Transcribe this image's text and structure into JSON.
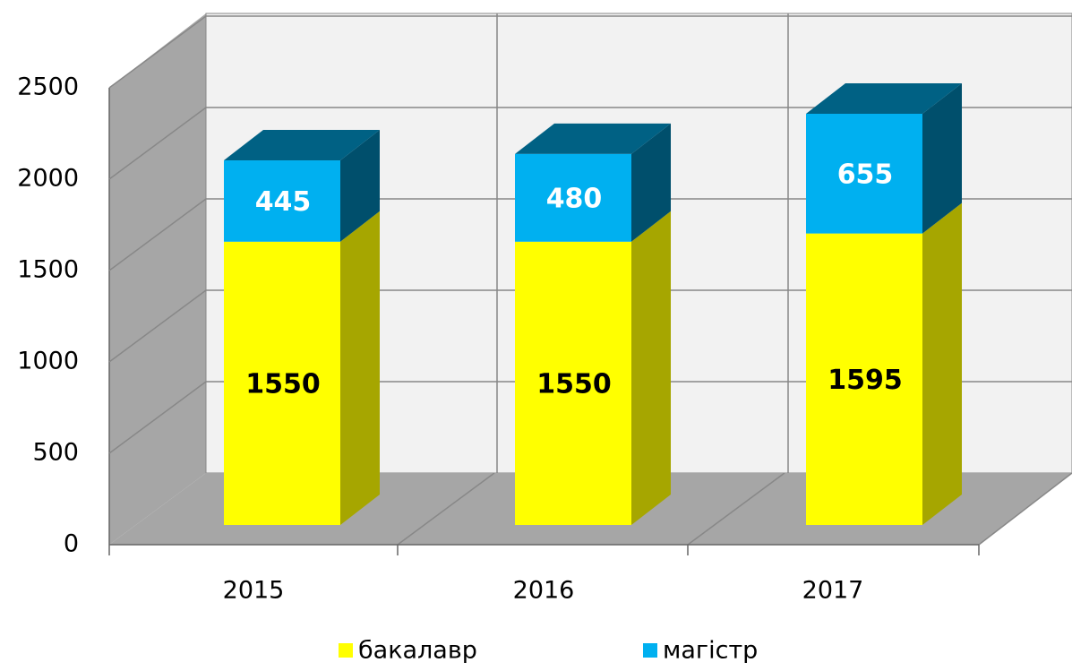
{
  "chart_data": {
    "type": "bar3d_stacked",
    "categories": [
      "2015",
      "2016",
      "2017"
    ],
    "series": [
      {
        "name": "бакалавр",
        "color": "#ffff00",
        "values": [
          1550,
          1550,
          1595
        ]
      },
      {
        "name": "магістр",
        "color": "#00b0f0",
        "values": [
          445,
          480,
          655
        ]
      }
    ],
    "ylim": [
      0,
      2500
    ],
    "yticks": [
      0,
      500,
      1000,
      1500,
      2000,
      2500
    ],
    "grid": true,
    "legend": "bottom"
  }
}
